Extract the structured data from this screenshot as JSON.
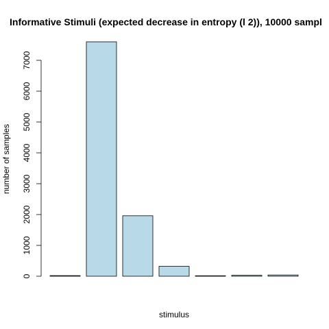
{
  "chart_data": {
    "type": "bar",
    "title": "Informative Stimuli (expected decrease in entropy (l 2)), 10000 sampl",
    "xlabel": "stimulus",
    "ylabel": "number of samples",
    "ylim": [
      0,
      7500
    ],
    "yticks": [
      0,
      1000,
      2000,
      3000,
      4000,
      5000,
      6000,
      7000
    ],
    "values": [
      20,
      7600,
      1960,
      320,
      15,
      30,
      40
    ],
    "bar_fill": "#b7d9e8",
    "bar_stroke": "#000000",
    "grid": false,
    "legend": "none"
  }
}
